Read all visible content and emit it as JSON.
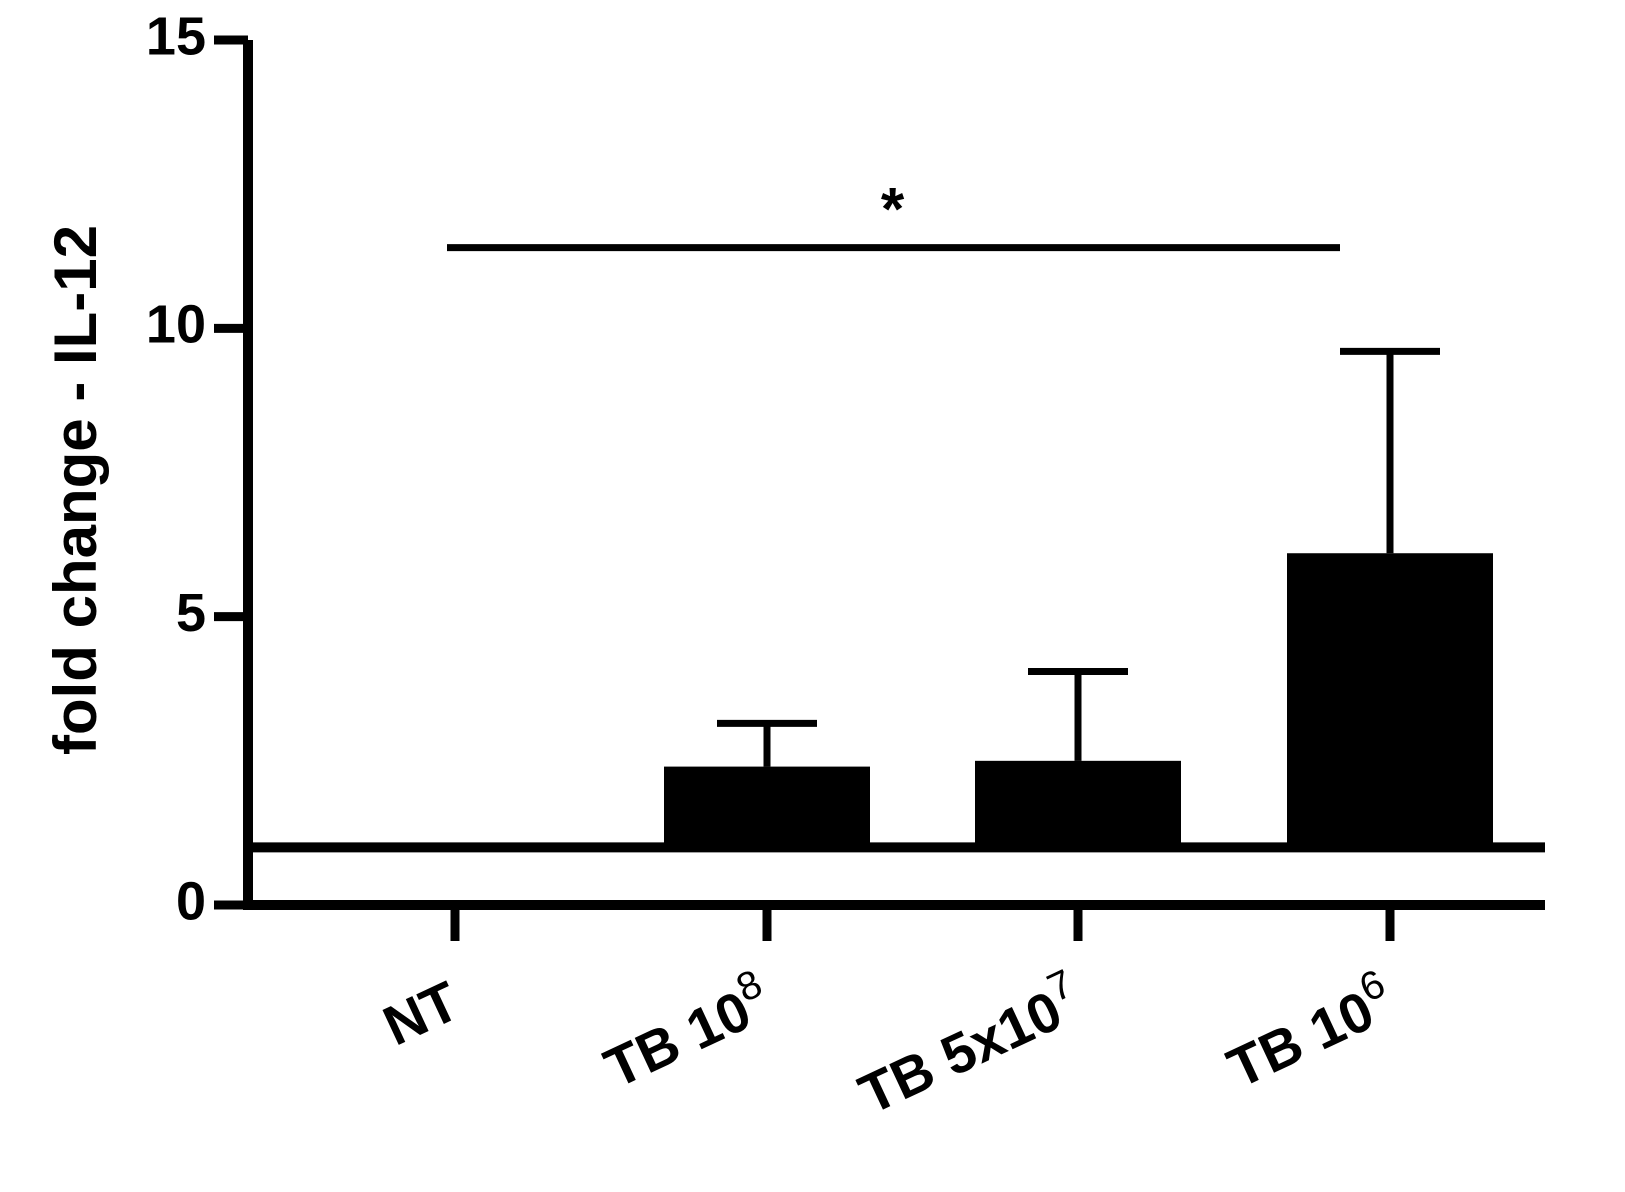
{
  "chart_data": {
    "type": "bar",
    "ylabel": "fold change - IL-12",
    "xlabel": "",
    "ylim": [
      0,
      15
    ],
    "yticks": [
      "0",
      "5",
      "10",
      "15"
    ],
    "baseline": 1,
    "categories": [
      {
        "base": "NT",
        "sup": ""
      },
      {
        "base": "TB 10",
        "sup": "8"
      },
      {
        "base": "TB 5x10",
        "sup": "7"
      },
      {
        "base": "TB 10",
        "sup": "6"
      }
    ],
    "values": [
      1.0,
      2.4,
      2.5,
      6.1
    ],
    "errors": [
      0,
      0.75,
      1.55,
      3.5
    ],
    "significance": {
      "from": 0,
      "to": 3,
      "y": 11.4,
      "label": "*"
    },
    "colors": {
      "bar": "#000000",
      "axis": "#000000"
    }
  }
}
